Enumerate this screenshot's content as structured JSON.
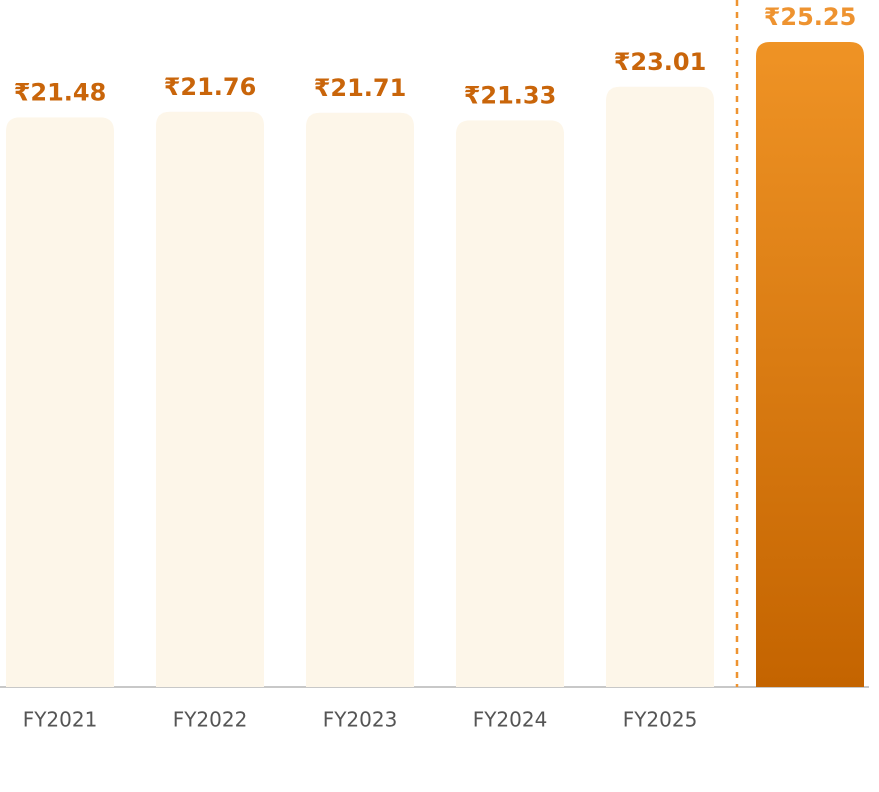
{
  "chart_data": {
    "type": "bar",
    "categories": [
      "FY2021",
      "FY2022",
      "FY2023",
      "FY2024",
      "FY2025",
      null
    ],
    "values": [
      21.48,
      21.76,
      21.71,
      21.33,
      23.01,
      25.25
    ],
    "value_labels": [
      "₹21.48",
      "₹21.76",
      "₹21.71",
      "₹21.33",
      "₹23.01",
      "₹25.25"
    ],
    "colors": [
      "#fdf6e9",
      "#fdf6e9",
      "#fdf6e9",
      "#fdf6e9",
      "#fdf6e9",
      [
        "#ef9325",
        "#c46400"
      ]
    ],
    "label_colors": [
      "#c9650a",
      "#c9650a",
      "#c9650a",
      "#c9650a",
      "#c9650a",
      "#ee9330"
    ],
    "ylim": [
      -7,
      27
    ]
  }
}
